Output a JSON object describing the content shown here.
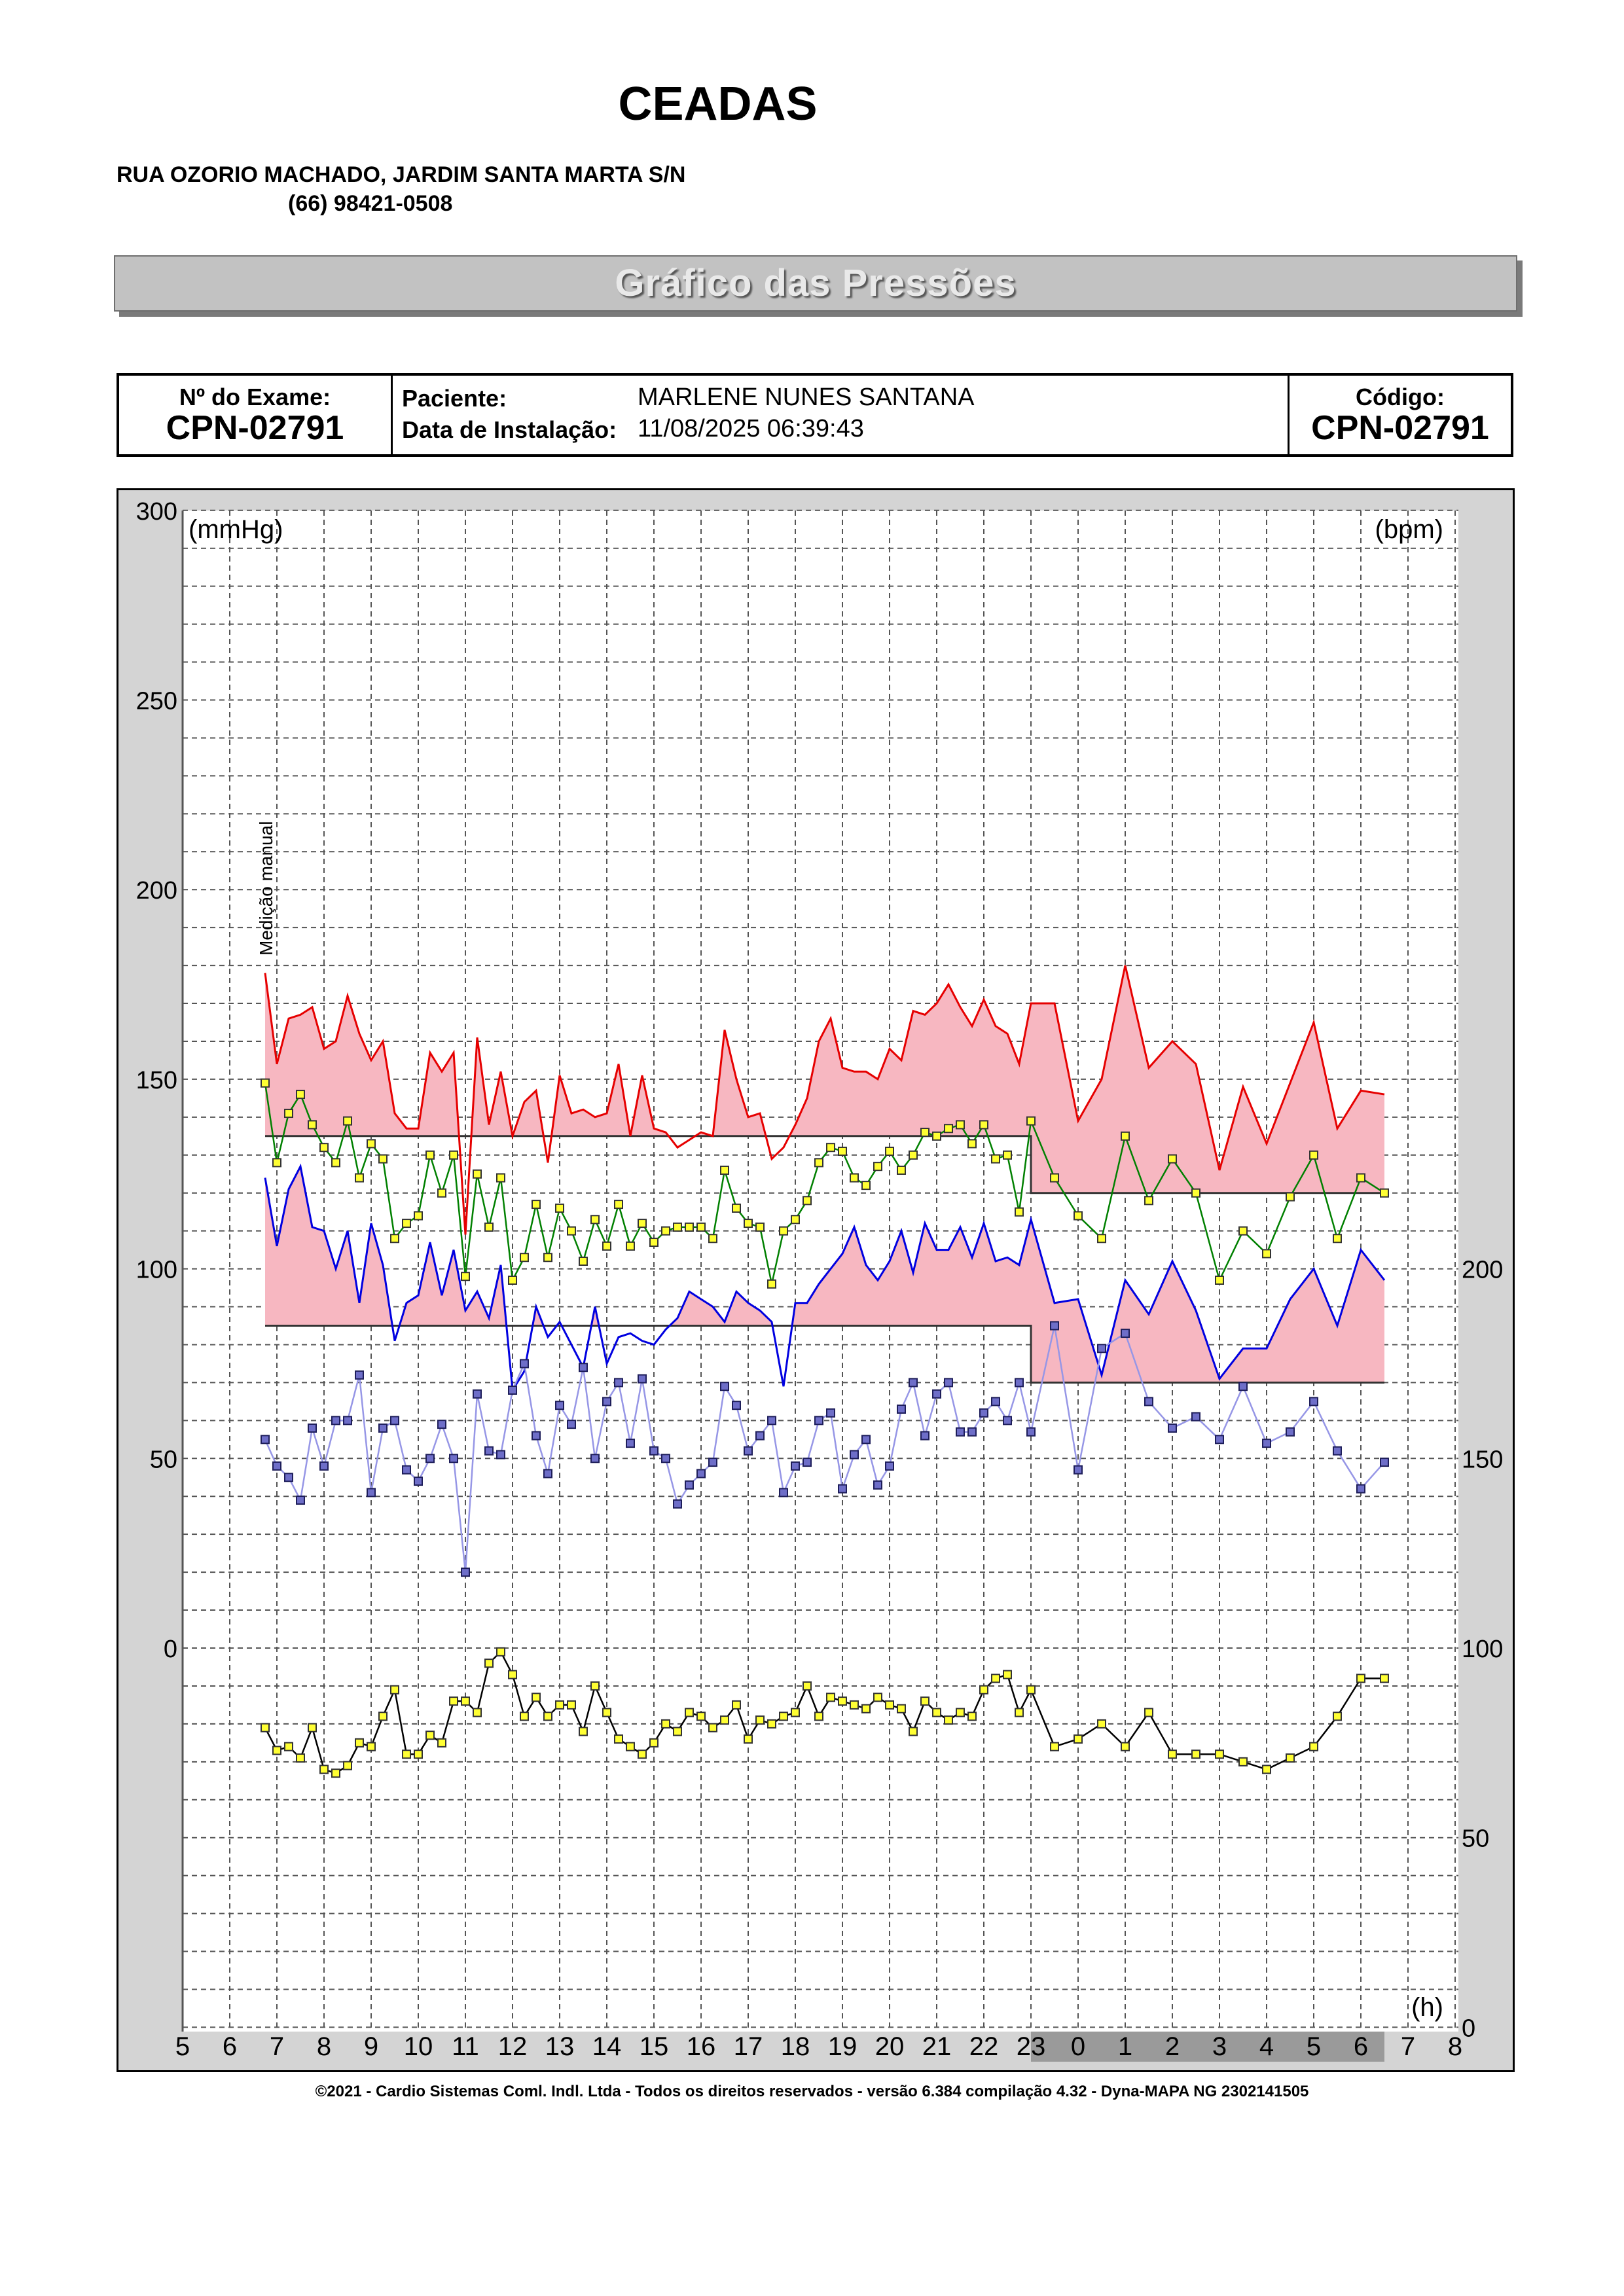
{
  "header": {
    "clinic_name": "CEADAS",
    "address": "RUA OZORIO MACHADO, JARDIM SANTA MARTA S/N",
    "phone": "(66) 98421-0508"
  },
  "banner": {
    "title": "Gráfico das Pressões"
  },
  "info": {
    "exam_label": "Nº do Exame:",
    "exam_value": "CPN-02791",
    "patient_label": "Paciente:",
    "patient_value": "MARLENE NUNES SANTANA",
    "install_label": "Data de Instalação:",
    "install_value": "11/08/2025 06:39:43",
    "code_label": "Código:",
    "code_value": "CPN-02791"
  },
  "footer": {
    "text": "©2021 - Cardio Sistemas Coml. Indl. Ltda - Todos os direitos reservados - versão 6.384 compilação 4.32 - Dyna-MAPA NG 2302141505"
  },
  "chart_data": {
    "type": "line",
    "ylabel_left": "(mmHg)",
    "ylabel_right": "(bpm)",
    "xlabel": "(h)",
    "ylim_left": [
      0,
      300
    ],
    "left_ticks": [
      "300",
      "250",
      "200",
      "150",
      "100",
      "50",
      "0"
    ],
    "right_ticks": [
      "200",
      "150",
      "100",
      "50",
      "0"
    ],
    "x_ticks": [
      "5",
      "6",
      "7",
      "8",
      "9",
      "10",
      "11",
      "12",
      "13",
      "14",
      "15",
      "16",
      "17",
      "18",
      "19",
      "20",
      "21",
      "22",
      "23",
      "0",
      "1",
      "2",
      "3",
      "4",
      "5",
      "6",
      "7",
      "8"
    ],
    "x_range": [
      5,
      32
    ],
    "night_start": 23,
    "night_end": 30.5,
    "annotation": "Medição manual",
    "annotation_x": 6.9,
    "limits": {
      "systolic_day": 135,
      "systolic_night": 120,
      "diastolic_day": 85,
      "diastolic_night": 70
    },
    "series": [
      {
        "key": "systolic",
        "color": "#e60000",
        "x": [
          6.75,
          7.0,
          7.25,
          7.5,
          7.75,
          8.0,
          8.25,
          8.5,
          8.75,
          9.0,
          9.25,
          9.5,
          9.75,
          10.0,
          10.25,
          10.5,
          10.75,
          11.0,
          11.25,
          11.5,
          11.75,
          12.0,
          12.25,
          12.5,
          12.75,
          13.0,
          13.25,
          13.5,
          13.75,
          14.0,
          14.25,
          14.5,
          14.75,
          15.0,
          15.25,
          15.5,
          15.75,
          16.0,
          16.25,
          16.5,
          16.75,
          17.0,
          17.25,
          17.5,
          17.75,
          18.0,
          18.25,
          18.5,
          18.75,
          19.0,
          19.25,
          19.5,
          19.75,
          20.0,
          20.25,
          20.5,
          20.75,
          21.0,
          21.25,
          21.5,
          21.75,
          22.0,
          22.25,
          22.5,
          22.75,
          23.0,
          23.5,
          24.0,
          24.5,
          25.0,
          25.5,
          26.0,
          26.5,
          27.0,
          27.5,
          28.0,
          28.5,
          29.0,
          29.5,
          30.0,
          30.5
        ],
        "y": [
          178,
          154,
          166,
          167,
          169,
          158,
          160,
          172,
          162,
          155,
          160,
          141,
          137,
          137,
          157,
          152,
          157,
          109,
          161,
          138,
          152,
          135,
          144,
          147,
          128,
          151,
          141,
          142,
          140,
          141,
          154,
          135,
          151,
          137,
          136,
          132,
          134,
          136,
          135,
          163,
          150,
          140,
          141,
          129,
          132,
          138,
          145,
          160,
          166,
          153,
          152,
          152,
          150,
          158,
          155,
          168,
          167,
          170,
          175,
          169,
          164,
          171,
          164,
          162,
          154,
          170,
          170,
          139,
          150,
          180,
          153,
          160,
          154,
          126,
          148,
          133,
          149,
          165,
          137,
          147,
          146
        ]
      },
      {
        "key": "mean",
        "color": "#008000",
        "x": [
          6.75,
          7.0,
          7.25,
          7.5,
          7.75,
          8.0,
          8.25,
          8.5,
          8.75,
          9.0,
          9.25,
          9.5,
          9.75,
          10.0,
          10.25,
          10.5,
          10.75,
          11.0,
          11.25,
          11.5,
          11.75,
          12.0,
          12.25,
          12.5,
          12.75,
          13.0,
          13.25,
          13.5,
          13.75,
          14.0,
          14.25,
          14.5,
          14.75,
          15.0,
          15.25,
          15.5,
          15.75,
          16.0,
          16.25,
          16.5,
          16.75,
          17.0,
          17.25,
          17.5,
          17.75,
          18.0,
          18.25,
          18.5,
          18.75,
          19.0,
          19.25,
          19.5,
          19.75,
          20.0,
          20.25,
          20.5,
          20.75,
          21.0,
          21.25,
          21.5,
          21.75,
          22.0,
          22.25,
          22.5,
          22.75,
          23.0,
          23.5,
          24.0,
          24.5,
          25.0,
          25.5,
          26.0,
          26.5,
          27.0,
          27.5,
          28.0,
          28.5,
          29.0,
          29.5,
          30.0,
          30.5
        ],
        "y": [
          149,
          128,
          141,
          146,
          138,
          132,
          128,
          139,
          124,
          133,
          129,
          108,
          112,
          114,
          130,
          120,
          130,
          98,
          125,
          111,
          124,
          97,
          103,
          117,
          103,
          116,
          110,
          102,
          113,
          106,
          117,
          106,
          112,
          107,
          110,
          111,
          111,
          111,
          108,
          126,
          116,
          112,
          111,
          96,
          110,
          113,
          118,
          128,
          132,
          131,
          124,
          122,
          127,
          131,
          126,
          130,
          136,
          135,
          137,
          138,
          133,
          138,
          129,
          130,
          115,
          139,
          124,
          114,
          108,
          135,
          118,
          129,
          120,
          97,
          110,
          104,
          119,
          130,
          108,
          124,
          120
        ]
      },
      {
        "key": "diastolic",
        "color": "#0000e0",
        "x": [
          6.75,
          7.0,
          7.25,
          7.5,
          7.75,
          8.0,
          8.25,
          8.5,
          8.75,
          9.0,
          9.25,
          9.5,
          9.75,
          10.0,
          10.25,
          10.5,
          10.75,
          11.0,
          11.25,
          11.5,
          11.75,
          12.0,
          12.25,
          12.5,
          12.75,
          13.0,
          13.25,
          13.5,
          13.75,
          14.0,
          14.25,
          14.5,
          14.75,
          15.0,
          15.25,
          15.5,
          15.75,
          16.0,
          16.25,
          16.5,
          16.75,
          17.0,
          17.25,
          17.5,
          17.75,
          18.0,
          18.25,
          18.5,
          18.75,
          19.0,
          19.25,
          19.5,
          19.75,
          20.0,
          20.25,
          20.5,
          20.75,
          21.0,
          21.25,
          21.5,
          21.75,
          22.0,
          22.25,
          22.5,
          22.75,
          23.0,
          23.5,
          24.0,
          24.5,
          25.0,
          25.5,
          26.0,
          26.5,
          27.0,
          27.5,
          28.0,
          28.5,
          29.0,
          29.5,
          30.0,
          30.5
        ],
        "y": [
          124,
          106,
          121,
          127,
          111,
          110,
          100,
          110,
          91,
          112,
          101,
          81,
          91,
          93,
          107,
          93,
          105,
          89,
          94,
          87,
          101,
          68,
          73,
          90,
          82,
          86,
          80,
          74,
          90,
          75,
          82,
          83,
          81,
          80,
          84,
          87,
          94,
          92,
          90,
          86,
          94,
          91,
          89,
          86,
          69,
          91,
          91,
          96,
          100,
          104,
          111,
          101,
          97,
          102,
          110,
          99,
          112,
          105,
          105,
          111,
          103,
          112,
          102,
          103,
          101,
          113,
          91,
          92,
          72,
          97,
          88,
          102,
          89,
          71,
          79,
          79,
          92,
          100,
          85,
          105,
          97
        ]
      },
      {
        "key": "heart_rate",
        "color": "#9696e6",
        "dark": "#4a4a9a",
        "x": [
          6.75,
          7.0,
          7.25,
          7.5,
          7.75,
          8.0,
          8.25,
          8.5,
          8.75,
          9.0,
          9.25,
          9.5,
          9.75,
          10.0,
          10.25,
          10.5,
          10.75,
          11.0,
          11.25,
          11.5,
          11.75,
          12.0,
          12.25,
          12.5,
          12.75,
          13.0,
          13.25,
          13.5,
          13.75,
          14.0,
          14.25,
          14.5,
          14.75,
          15.0,
          15.25,
          15.5,
          15.75,
          16.0,
          16.25,
          16.5,
          16.75,
          17.0,
          17.25,
          17.5,
          17.75,
          18.0,
          18.25,
          18.5,
          18.75,
          19.0,
          19.25,
          19.5,
          19.75,
          20.0,
          20.25,
          20.5,
          20.75,
          21.0,
          21.25,
          21.5,
          21.75,
          22.0,
          22.25,
          22.5,
          22.75,
          23.0,
          23.5,
          24.0,
          24.5,
          25.0,
          25.5,
          26.0,
          26.5,
          27.0,
          27.5,
          28.0,
          28.5,
          29.0,
          29.5,
          30.0,
          30.5
        ],
        "y": [
          55,
          48,
          45,
          39,
          58,
          48,
          60,
          60,
          72,
          41,
          58,
          60,
          47,
          44,
          50,
          59,
          50,
          20,
          67,
          52,
          51,
          68,
          75,
          56,
          46,
          64,
          59,
          74,
          50,
          65,
          70,
          54,
          71,
          52,
          50,
          38,
          43,
          46,
          49,
          69,
          64,
          52,
          56,
          60,
          41,
          48,
          49,
          60,
          62,
          42,
          51,
          55,
          43,
          48,
          63,
          70,
          56,
          67,
          70,
          57,
          57,
          62,
          65,
          60,
          70,
          57,
          85,
          47,
          79,
          83,
          65,
          58,
          61,
          55,
          69,
          54,
          57,
          65,
          52,
          42,
          49
        ]
      },
      {
        "key": "pulse_pressure",
        "color": "#000000",
        "x": [
          6.75,
          7.0,
          7.25,
          7.5,
          7.75,
          8.0,
          8.25,
          8.5,
          8.75,
          9.0,
          9.25,
          9.5,
          9.75,
          10.0,
          10.25,
          10.5,
          10.75,
          11.0,
          11.25,
          11.5,
          11.75,
          12.0,
          12.25,
          12.5,
          12.75,
          13.0,
          13.25,
          13.5,
          13.75,
          14.0,
          14.25,
          14.5,
          14.75,
          15.0,
          15.25,
          15.5,
          15.75,
          16.0,
          16.25,
          16.5,
          16.75,
          17.0,
          17.25,
          17.5,
          17.75,
          18.0,
          18.25,
          18.5,
          18.75,
          19.0,
          19.25,
          19.5,
          19.75,
          20.0,
          20.25,
          20.5,
          20.75,
          21.0,
          21.25,
          21.5,
          21.75,
          22.0,
          22.25,
          22.5,
          22.75,
          23.0,
          23.5,
          24.0,
          24.5,
          25.0,
          25.5,
          26.0,
          26.5,
          27.0,
          27.5,
          28.0,
          28.5,
          29.0,
          29.5,
          30.0,
          30.5
        ],
        "y": [
          -21,
          -27,
          -26,
          -29,
          -21,
          -32,
          -33,
          -31,
          -25,
          -26,
          -18,
          -11,
          -28,
          -28,
          -23,
          -25,
          -14,
          -14,
          -17,
          -4,
          -1,
          -7,
          -18,
          -13,
          -18,
          -15,
          -15,
          -22,
          -10,
          -17,
          -24,
          -26,
          -28,
          -25,
          -20,
          -22,
          -17,
          -18,
          -21,
          -19,
          -15,
          -24,
          -19,
          -20,
          -18,
          -17,
          -10,
          -18,
          -13,
          -14,
          -15,
          -16,
          -13,
          -15,
          -16,
          -22,
          -14,
          -17,
          -19,
          -17,
          -18,
          -11,
          -8,
          -7,
          -17,
          -11,
          -26,
          -24,
          -20,
          -26,
          -17,
          -28,
          -28,
          -28,
          -30,
          -32,
          -29,
          -26,
          -18,
          -8,
          -8
        ]
      }
    ]
  }
}
